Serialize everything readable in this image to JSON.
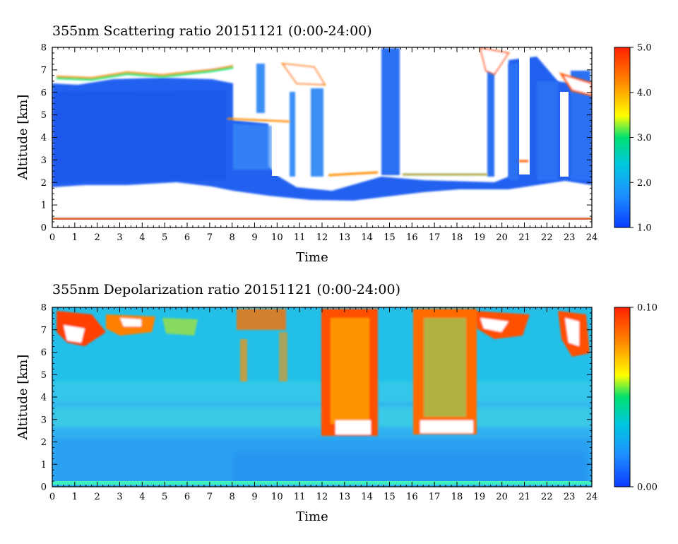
{
  "chart_data": [
    {
      "type": "heatmap",
      "title": "355nm Scattering ratio  20151121 (0:00-24:00)",
      "xlabel": "Time",
      "ylabel": "Altitude [km]",
      "xlim": [
        0,
        24
      ],
      "ylim": [
        0,
        8
      ],
      "x_ticks": [
        "0",
        "1",
        "2",
        "3",
        "4",
        "5",
        "6",
        "7",
        "8",
        "9",
        "10",
        "11",
        "12",
        "13",
        "14",
        "15",
        "16",
        "17",
        "18",
        "19",
        "20",
        "21",
        "22",
        "23",
        "24"
      ],
      "y_ticks": [
        "0",
        "1",
        "2",
        "3",
        "4",
        "5",
        "6",
        "7",
        "8"
      ],
      "colorbar": {
        "min": 1.0,
        "max": 5.0,
        "tick_labels": [
          "1.0",
          "2.0",
          "3.0",
          "4.0",
          "5.0"
        ],
        "tick_values": [
          1.0,
          2.0,
          3.0,
          4.0,
          5.0
        ]
      },
      "colors": [
        "#0a3cff",
        "#1e90ff",
        "#00c8e0",
        "#00e070",
        "#ffff00",
        "#ff8c00",
        "#ff2000"
      ]
    },
    {
      "type": "heatmap",
      "title": "355nm Depolarization ratio  20151121 (0:00-24:00)",
      "xlabel": "Time",
      "ylabel": "Altitude [km]",
      "xlim": [
        0,
        24
      ],
      "ylim": [
        0,
        8
      ],
      "x_ticks": [
        "0",
        "1",
        "2",
        "3",
        "4",
        "5",
        "6",
        "7",
        "8",
        "9",
        "10",
        "11",
        "12",
        "13",
        "14",
        "15",
        "16",
        "17",
        "18",
        "19",
        "20",
        "21",
        "22",
        "23",
        "24"
      ],
      "y_ticks": [
        "0",
        "1",
        "2",
        "3",
        "4",
        "5",
        "6",
        "7",
        "8"
      ],
      "colorbar": {
        "min": 0.0,
        "max": 0.1,
        "tick_labels": [
          "0.00",
          "0.10"
        ],
        "tick_values": [
          0.0,
          0.1
        ]
      },
      "colors": [
        "#0a3cff",
        "#1e90ff",
        "#00c8e0",
        "#00e070",
        "#ffff00",
        "#ff8c00",
        "#ff2000"
      ]
    }
  ]
}
